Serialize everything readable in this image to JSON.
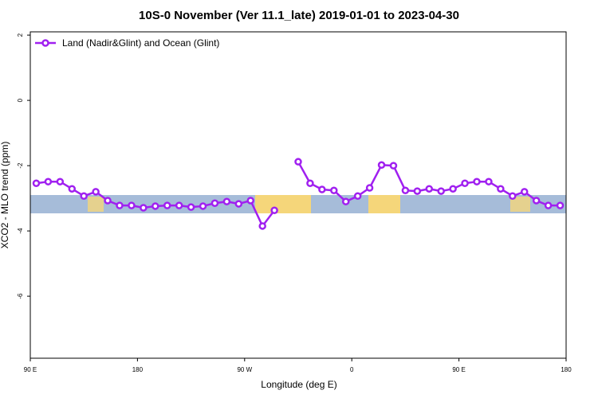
{
  "chart_data": {
    "type": "line",
    "title": "10S-0 November (Ver 11.1_late)   2019-01-01 to 2023-04-30",
    "x_label": "Longitude (deg E)",
    "y_label": "XCO2 - MLO trend (ppm)",
    "x": [
      95,
      105,
      115,
      125,
      135,
      145,
      155,
      165,
      175,
      185,
      195,
      205,
      215,
      225,
      235,
      245,
      255,
      265,
      275,
      285,
      295,
      305,
      315,
      325,
      335,
      345,
      355,
      365,
      375,
      385,
      395,
      405,
      415,
      425,
      435,
      445,
      455,
      465,
      475,
      485,
      495,
      505,
      515,
      525,
      535
    ],
    "series": [
      {
        "name": "Land (Nadir&Glint) and Ocean (Glint)",
        "color": "#a020f0",
        "values": [
          -2.54,
          -2.49,
          -2.49,
          -2.71,
          -2.93,
          -2.8,
          -3.07,
          -3.22,
          -3.22,
          -3.29,
          -3.24,
          -3.22,
          -3.22,
          -3.27,
          -3.24,
          -3.15,
          -3.1,
          -3.17,
          -3.07,
          -3.85,
          -3.37,
          null,
          -1.88,
          -2.54,
          -2.73,
          -2.76,
          -3.1,
          -2.93,
          -2.68,
          -1.98,
          -2.0,
          -2.76,
          -2.78,
          -2.71,
          -2.78,
          -2.71,
          -2.54,
          -2.49,
          -2.49,
          -2.71,
          -2.93,
          -2.8,
          -3.07,
          -3.22,
          -3.22
        ]
      }
    ],
    "xlim": [
      90,
      540
    ],
    "xticks": [
      {
        "value": 90,
        "label": "90 E"
      },
      180,
      {
        "value": 270,
        "label": "90 W"
      },
      {
        "value": 360,
        "label": "0"
      },
      {
        "value": 450,
        "label": "90 E"
      },
      {
        "value": 540,
        "label": "180"
      }
    ],
    "ylim": [
      -7.9,
      2.1
    ],
    "yticks": [
      2,
      0,
      -2,
      -4,
      -6
    ],
    "legend": "top-left"
  }
}
